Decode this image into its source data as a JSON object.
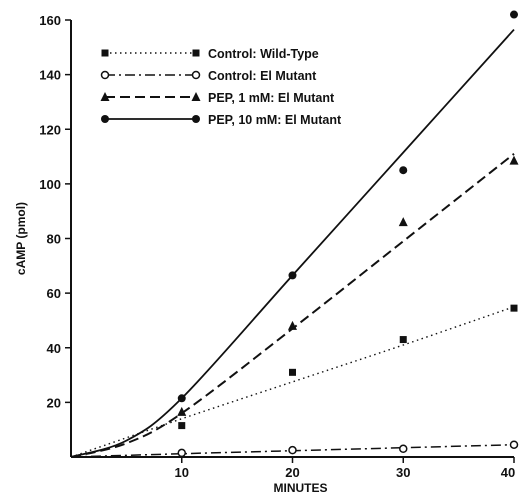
{
  "chart_data": {
    "type": "scatter",
    "xlabel": "MINUTES",
    "ylabel": "cAMP (pmol)",
    "xlim": [
      0,
      40
    ],
    "ylim": [
      0,
      160
    ],
    "x_ticks": [
      10,
      20,
      30,
      40
    ],
    "y_ticks": [
      20,
      40,
      60,
      80,
      100,
      120,
      140,
      160
    ],
    "grid": false,
    "legend_position": "top-left",
    "series": [
      {
        "name": "Control: Wild-Type",
        "marker": "square",
        "line_style": "dotted",
        "points": [
          [
            10,
            11.5
          ],
          [
            20,
            31
          ],
          [
            30,
            43
          ],
          [
            40,
            54.5
          ]
        ],
        "fit": [
          [
            0,
            0
          ],
          [
            10,
            14
          ],
          [
            20,
            27.5
          ],
          [
            30,
            41
          ],
          [
            40,
            55
          ]
        ]
      },
      {
        "name": "Control: El Mutant",
        "marker": "open-circle",
        "line_style": "dash-dot",
        "points": [
          [
            10,
            1.5
          ],
          [
            20,
            2.5
          ],
          [
            30,
            3
          ],
          [
            40,
            4.5
          ]
        ],
        "fit": [
          [
            0,
            0
          ],
          [
            10,
            1.2
          ],
          [
            20,
            2.3
          ],
          [
            30,
            3.4
          ],
          [
            40,
            4.5
          ]
        ]
      },
      {
        "name": "PEP, 1 mM: El Mutant",
        "marker": "triangle",
        "line_style": "dashed",
        "points": [
          [
            10,
            16.5
          ],
          [
            20,
            48
          ],
          [
            30,
            86
          ],
          [
            40,
            108.5
          ]
        ],
        "fit": [
          [
            0,
            0
          ],
          [
            5,
            5
          ],
          [
            10,
            16
          ],
          [
            20,
            47
          ],
          [
            30,
            79
          ],
          [
            40,
            111
          ]
        ]
      },
      {
        "name": "PEP, 10 mM: El Mutant",
        "marker": "filled-circle",
        "line_style": "solid",
        "points": [
          [
            10,
            21.5
          ],
          [
            20,
            66.5
          ],
          [
            30,
            105
          ],
          [
            40,
            163
          ]
        ],
        "fit": [
          [
            0,
            0
          ],
          [
            5,
            6
          ],
          [
            10,
            21.5
          ],
          [
            20,
            66.5
          ],
          [
            30,
            111.5
          ],
          [
            40,
            156.5
          ]
        ]
      }
    ]
  }
}
